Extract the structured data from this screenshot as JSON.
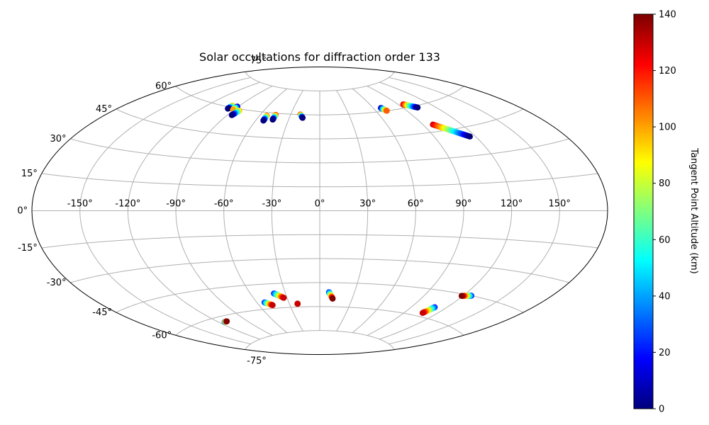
{
  "chart_data": {
    "type": "scatter",
    "projection": "aitoff",
    "title": "Solar occultations for diffraction order 133",
    "grid": true,
    "longitude_ticks": [
      "-150°",
      "-120°",
      "-90°",
      "-60°",
      "-30°",
      "0°",
      "30°",
      "60°",
      "90°",
      "120°",
      "150°"
    ],
    "latitude_ticks": [
      "-75°",
      "-60°",
      "-45°",
      "-30°",
      "-15°",
      "0°",
      "15°",
      "30°",
      "45°",
      "60°",
      "75°"
    ],
    "colorbar": {
      "label": "Tangent Point Altitude (km)",
      "colormap": "jet",
      "range": [
        0,
        140
      ],
      "ticks": [
        "0",
        "20",
        "40",
        "60",
        "80",
        "100",
        "120",
        "140"
      ]
    },
    "tracks": [
      {
        "start": [
          -97,
          61
        ],
        "end": [
          -97,
          59
        ],
        "alt_start": 100,
        "alt_end": 0
      },
      {
        "start": [
          -91,
          61
        ],
        "end": [
          -91,
          59
        ],
        "alt_start": 0,
        "alt_end": 100
      },
      {
        "start": [
          -84,
          59
        ],
        "end": [
          -86,
          56
        ],
        "alt_start": 100,
        "alt_end": 0
      },
      {
        "start": [
          -53,
          58
        ],
        "end": [
          -53,
          55
        ],
        "alt_start": 110,
        "alt_end": 0
      },
      {
        "start": [
          -45,
          59
        ],
        "end": [
          -45,
          56
        ],
        "alt_start": 120,
        "alt_end": 0
      },
      {
        "start": [
          -20,
          60
        ],
        "end": [
          -17,
          58
        ],
        "alt_start": 120,
        "alt_end": 0
      },
      {
        "start": [
          68,
          62
        ],
        "end": [
          71,
          60
        ],
        "alt_start": 0,
        "alt_end": 110
      },
      {
        "start": [
          95,
          62
        ],
        "end": [
          104,
          59
        ],
        "alt_start": 130,
        "alt_end": 0
      },
      {
        "start": [
          98,
          49
        ],
        "end": [
          116,
          40
        ],
        "alt_start": 130,
        "alt_end": 0
      },
      {
        "start": [
          -114,
          -63
        ],
        "end": [
          -111,
          -63
        ],
        "alt_start": 20,
        "alt_end": 140
      },
      {
        "start": [
          -53,
          -56
        ],
        "end": [
          -47,
          -58
        ],
        "alt_start": 20,
        "alt_end": 130
      },
      {
        "start": [
          -40,
          -51
        ],
        "end": [
          -33,
          -54
        ],
        "alt_start": 20,
        "alt_end": 130
      },
      {
        "start": [
          -22,
          -58
        ],
        "end": [
          -22,
          -58
        ],
        "alt_start": 130,
        "alt_end": 130
      },
      {
        "start": [
          8,
          -51
        ],
        "end": [
          12,
          -55
        ],
        "alt_start": 20,
        "alt_end": 140
      },
      {
        "start": [
          126,
          -45
        ],
        "end": [
          119,
          -46
        ],
        "alt_start": 20,
        "alt_end": 140
      },
      {
        "start": [
          110,
          -54
        ],
        "end": [
          107,
          -58
        ],
        "alt_start": 20,
        "alt_end": 130
      }
    ]
  }
}
